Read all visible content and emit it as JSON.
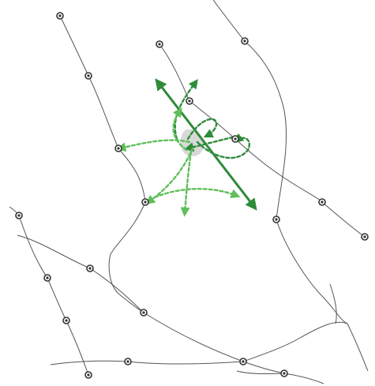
{
  "diagram": {
    "colors": {
      "curve": "#555555",
      "node": "#333333",
      "arrow": "#2e8b3a",
      "arrow_light": "#5fbf5a",
      "highlight": "#cfcfcf"
    },
    "icons": [
      "node-marker-icon",
      "arrow-head-icon"
    ]
  }
}
